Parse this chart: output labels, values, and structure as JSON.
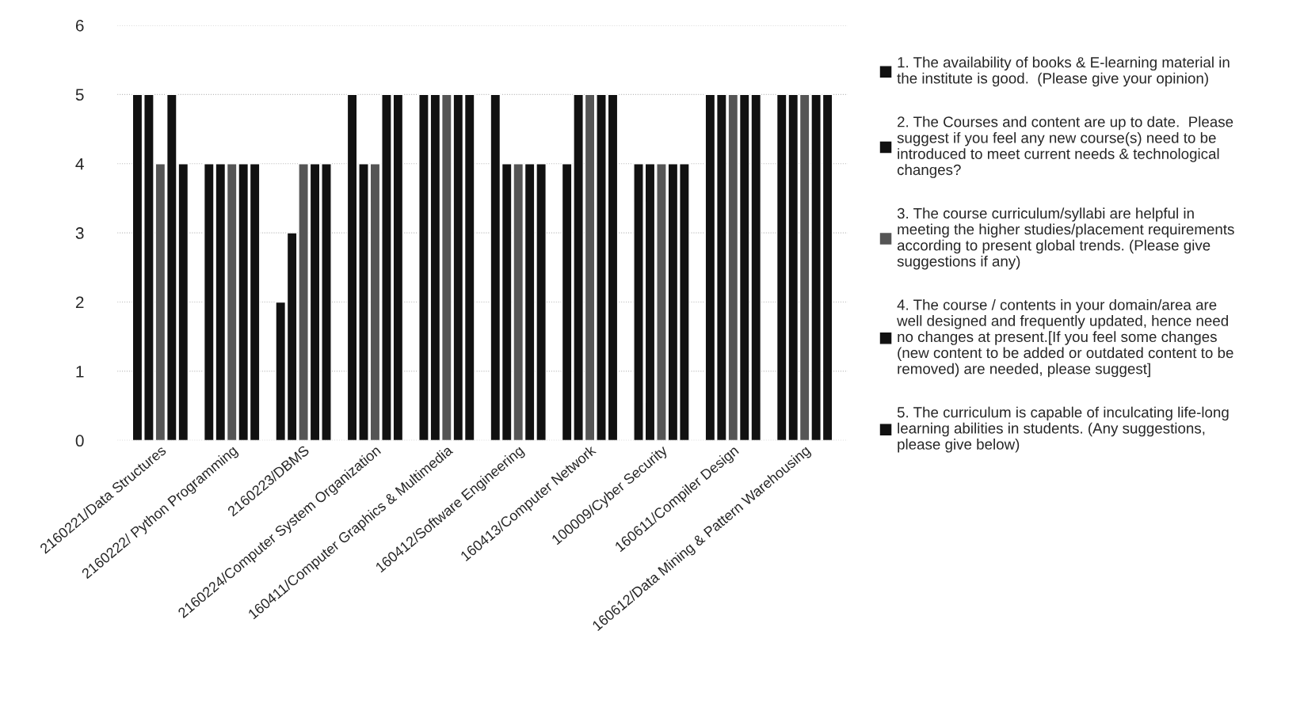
{
  "chart_data": {
    "type": "bar",
    "categories": [
      "2160221/Data Structures",
      "2160222/ Python Programming",
      "2160223/DBMS",
      "2160224/Computer System Organization",
      "160411/Computer Graphics & Multimedia",
      "160412/Software Engineering",
      "160413/Computer Network",
      "100009/Cyber Security",
      "160611/Compiler Design",
      "160612/Data Mining & Pattern Warehousing"
    ],
    "series": [
      {
        "name": "1. The availability of books & E-learning material in\nthe institute is good.  (Please give your opinion)",
        "color": "#111111",
        "values": [
          5,
          4,
          2,
          5,
          5,
          5,
          4,
          4,
          5,
          5
        ]
      },
      {
        "name": "2. The Courses and content are up to date.  Please\nsuggest if you feel any new course(s) need to be\nintroduced to meet current needs & technological\nchanges?",
        "color": "#111111",
        "values": [
          5,
          4,
          3,
          4,
          5,
          4,
          5,
          4,
          5,
          5
        ]
      },
      {
        "name": "3. The course curriculum/syllabi are helpful in\nmeeting the higher studies/placement requirements\naccording to present global trends. (Please give\nsuggestions if any)",
        "color": "#555555",
        "values": [
          4,
          4,
          4,
          4,
          5,
          4,
          5,
          4,
          5,
          5
        ]
      },
      {
        "name": "4. The course / contents in your domain/area are\nwell designed and frequently updated, hence need\nno changes at present.[If you feel some changes\n(new content to be added or outdated content to be\nremoved) are needed, please suggest]",
        "color": "#111111",
        "values": [
          5,
          4,
          4,
          5,
          5,
          4,
          5,
          4,
          5,
          5
        ]
      },
      {
        "name": "5. The curriculum is capable of inculcating life-long\nlearning abilities in students. (Any suggestions,\nplease give below)",
        "color": "#111111",
        "values": [
          4,
          4,
          4,
          5,
          5,
          4,
          5,
          4,
          5,
          5
        ]
      }
    ],
    "ylim": [
      0,
      6
    ],
    "yticks": [
      0,
      1,
      2,
      3,
      4,
      5,
      6
    ],
    "grid": "y",
    "legend": "right"
  }
}
